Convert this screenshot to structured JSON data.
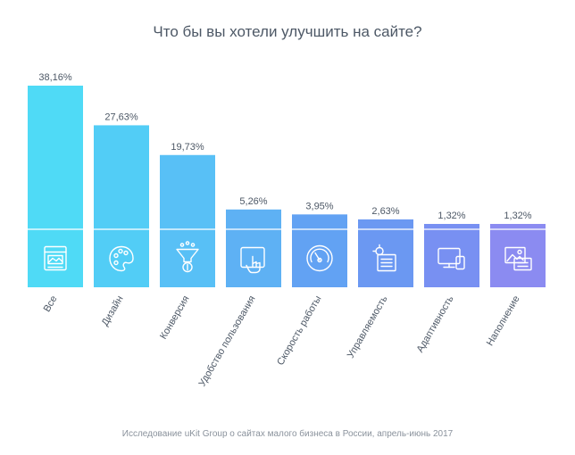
{
  "title": "Что бы вы хотели улучшить на сайте?",
  "footnote": "Исследование uKit Group о сайтах малого бизнеса в России, апрель-июнь 2017",
  "chart_data": {
    "type": "bar",
    "title": "Что бы вы хотели улучшить на сайте?",
    "categories": [
      "Все",
      "Дизайн",
      "Конверсия",
      "Удобство пользования",
      "Скорость работы",
      "Управляемость",
      "Адаптивность",
      "Наполнение"
    ],
    "values": [
      38.16,
      27.63,
      19.73,
      5.26,
      3.95,
      2.63,
      1.32,
      1.32
    ],
    "value_labels": [
      "38,16%",
      "27,63%",
      "19,73%",
      "5,26%",
      "3,95%",
      "2,63%",
      "1,32%",
      "1,32%"
    ],
    "icons": [
      "dashboard-icon",
      "palette-icon",
      "funnel-icon",
      "touch-screen-icon",
      "speedometer-icon",
      "settings-panel-icon",
      "devices-icon",
      "images-icon"
    ],
    "colors": [
      "#4fdaf6",
      "#52cdf6",
      "#58c0f6",
      "#5eb1f4",
      "#62a2f3",
      "#6b98f2",
      "#7890f2",
      "#8b8bf1"
    ],
    "xlabel": "",
    "ylabel": "",
    "ylim": [
      0,
      38.16
    ],
    "grid": false,
    "legend": "none"
  }
}
